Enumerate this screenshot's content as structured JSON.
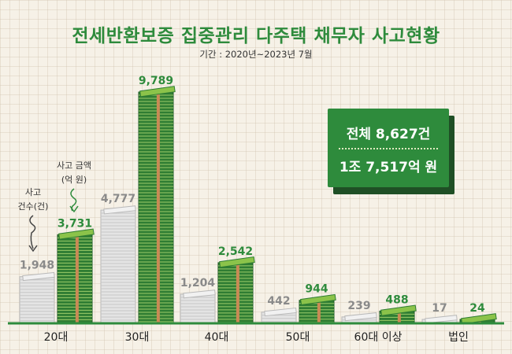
{
  "title": "전세반환보증 집중관리 다주택 채무자 사고현황",
  "subtitle": "기간 : 2020년~2023년 7월",
  "summary": {
    "total_count": "전체 8,627건",
    "total_amount": "1조 7,517억 원"
  },
  "annotations": {
    "count": [
      "사고",
      "건수(건)"
    ],
    "amount": [
      "사고 금액",
      "(억 원)"
    ]
  },
  "colors": {
    "amount": "#2e8b3c",
    "count": "#8a8a8a",
    "accent": "#2e8b3c"
  },
  "chart_data": {
    "type": "bar",
    "categories": [
      "20대",
      "30대",
      "40대",
      "50대",
      "60대 이상",
      "법인"
    ],
    "series": [
      {
        "name": "사고 건수(건)",
        "values": [
          1948,
          4777,
          1204,
          442,
          239,
          17
        ],
        "labels": [
          "1,948",
          "4,777",
          "1,204",
          "442",
          "239",
          "17"
        ]
      },
      {
        "name": "사고 금액(억 원)",
        "values": [
          3731,
          9789,
          2542,
          944,
          488,
          24
        ],
        "labels": [
          "3,731",
          "9,789",
          "2,542",
          "944",
          "488",
          "24"
        ]
      }
    ],
    "title": "전세반환보증 집중관리 다주택 채무자 사고현황",
    "ylim": [
      0,
      9789
    ]
  }
}
